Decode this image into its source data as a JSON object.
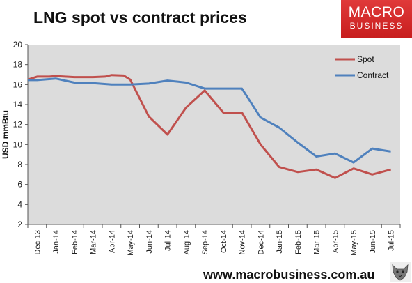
{
  "header": {
    "title": "LNG spot vs contract prices",
    "brand_line1": "MACRO",
    "brand_line2": "BUSINESS"
  },
  "footer": {
    "url": "www.macrobusiness.com.au",
    "logo_icon": "wolf-head-icon"
  },
  "colors": {
    "spot": "#c0504d",
    "contract": "#4f81bd",
    "plot_background": "#dcdcdc",
    "brand_red": "#d32f2f"
  },
  "chart_data": {
    "type": "line",
    "title": "LNG spot vs contract prices",
    "ylabel": "USD mmBtu",
    "xlabel": "",
    "ylim": [
      2,
      20
    ],
    "yticks": [
      2,
      4,
      6,
      8,
      10,
      12,
      14,
      16,
      18,
      20
    ],
    "grid": false,
    "legend_position": "top-right",
    "categories": [
      "Dec-13",
      "Jan-14",
      "Feb-14",
      "Mar-14",
      "Apr-14",
      "May-14",
      "Jun-14",
      "Jul-14",
      "Aug-14",
      "Sep-14",
      "Oct-14",
      "Nov-14",
      "Dec-14",
      "Jan-15",
      "Feb-15",
      "Mar-15",
      "Apr-15",
      "May-15",
      "Jun-15",
      "Jul-15"
    ],
    "series": [
      {
        "name": "Spot",
        "color": "#c0504d",
        "x": [
          "Dec-13",
          "Dec-13",
          "Jan-14",
          "Jan-14",
          "Feb-14",
          "Mar-14",
          "Apr-14",
          "Apr-14",
          "May-14",
          "May-14",
          "Jun-14",
          "Jul-14",
          "Aug-14",
          "Sep-14",
          "Oct-14",
          "Nov-14",
          "Dec-14",
          "Jan-15",
          "Feb-15",
          "Mar-15",
          "Apr-15",
          "May-15",
          "Jun-15",
          "Jul-15"
        ],
        "values": [
          16.5,
          16.8,
          16.8,
          16.85,
          16.75,
          16.75,
          16.8,
          16.95,
          16.9,
          16.5,
          12.8,
          11.0,
          13.7,
          15.4,
          13.2,
          13.2,
          10.0,
          7.75,
          7.25,
          7.5,
          6.65,
          7.6,
          7.0,
          7.5
        ]
      },
      {
        "name": "Contract",
        "color": "#4f81bd",
        "x": [
          "Dec-13",
          "Dec-13",
          "Jan-14",
          "Feb-14",
          "Mar-14",
          "Apr-14",
          "May-14",
          "Jun-14",
          "Jul-14",
          "Aug-14",
          "Sep-14",
          "Oct-14",
          "Nov-14",
          "Dec-14",
          "Jan-15",
          "Feb-15",
          "Mar-15",
          "Apr-15",
          "May-15",
          "Jun-15",
          "Jul-15"
        ],
        "values": [
          16.45,
          16.45,
          16.6,
          16.2,
          16.15,
          16.0,
          16.0,
          16.1,
          16.4,
          16.2,
          15.6,
          15.6,
          15.6,
          12.7,
          11.7,
          10.2,
          8.8,
          9.1,
          8.2,
          9.6,
          9.3
        ]
      }
    ]
  }
}
